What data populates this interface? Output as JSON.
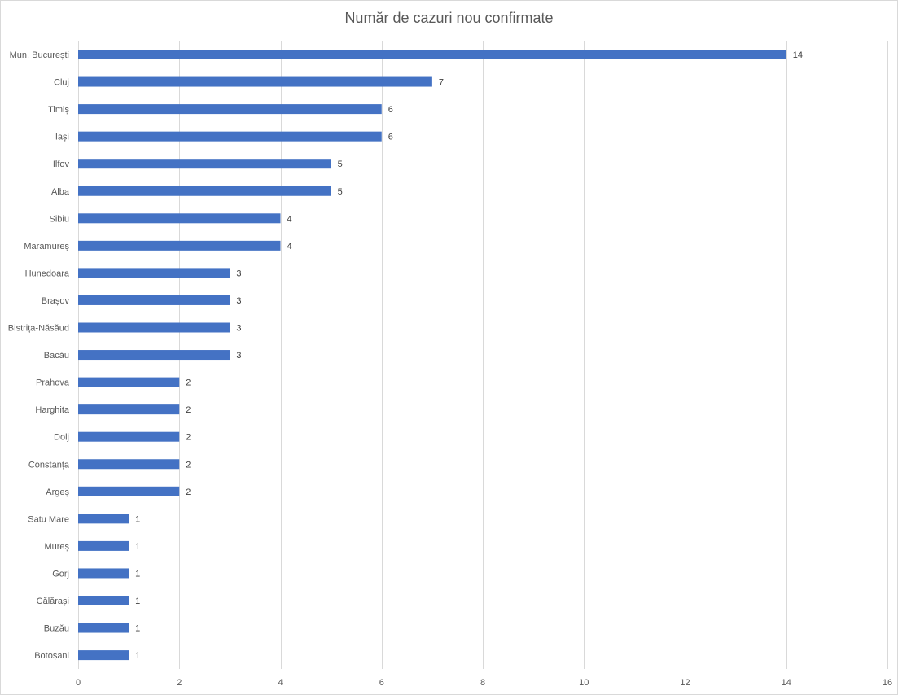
{
  "chart_data": {
    "type": "bar",
    "orientation": "horizontal",
    "title": "Număr de cazuri nou confirmate",
    "categories": [
      "Mun. București",
      "Cluj",
      "Timiș",
      "Iași",
      "Ilfov",
      "Alba",
      "Sibiu",
      "Maramureș",
      "Hunedoara",
      "Brașov",
      "Bistrița-Năsăud",
      "Bacău",
      "Prahova",
      "Harghita",
      "Dolj",
      "Constanța",
      "Argeș",
      "Satu Mare",
      "Mureș",
      "Gorj",
      "Călărași",
      "Buzău",
      "Botoșani"
    ],
    "values": [
      14,
      7,
      6,
      6,
      5,
      5,
      4,
      4,
      3,
      3,
      3,
      3,
      2,
      2,
      2,
      2,
      2,
      1,
      1,
      1,
      1,
      1,
      1
    ],
    "xticks": [
      "0",
      "2",
      "4",
      "6",
      "8",
      "10",
      "12",
      "14",
      "16"
    ],
    "xlim": [
      0,
      16
    ],
    "grid": true,
    "data_labels": true,
    "legend": "none",
    "colors": {
      "bar": "#4472c4",
      "grid": "#d9d9d9",
      "text": "#595959"
    }
  }
}
